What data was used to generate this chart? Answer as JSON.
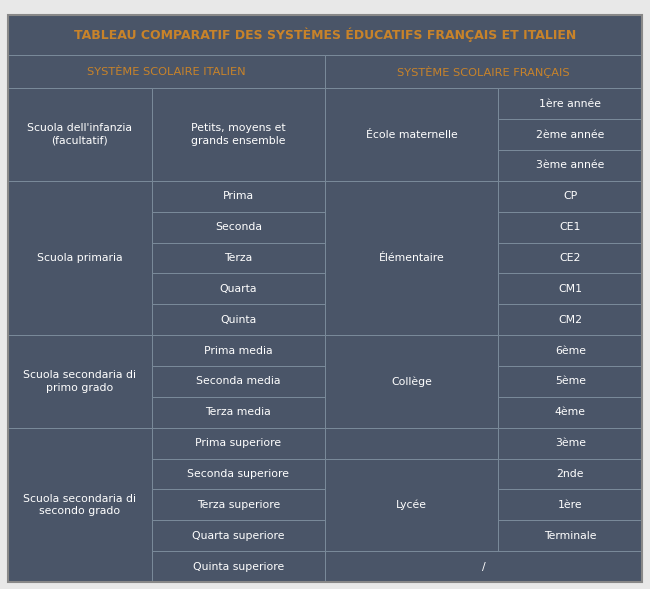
{
  "title": "TABLEAU COMPARATIF DES SYSTÈMES ÉDUCATIFS FRANÇAIS ET ITALIEN",
  "header_italian": "SYSTÈME SCOLAIRE ITALIEN",
  "header_french": "SYSTÈME SCOLAIRE FRANÇAIS",
  "cell_bg": "#4a5568",
  "border_color": "#7a8a9a",
  "text_color": "#ffffff",
  "orange_color": "#c8832a",
  "outer_bg": "#e8e8e8",
  "figsize": [
    6.5,
    5.89
  ],
  "groups": [
    {
      "col1": "Scuola dell'infanzia\n(facultatif)",
      "col2_items": [
        "Petits, moyens et\ngrands ensemble"
      ],
      "col2_merged": true,
      "col3": "École maternelle",
      "col3_merged": true,
      "col4_items": [
        "1ère année",
        "2ème année",
        "3ème année"
      ],
      "nrows": 3
    },
    {
      "col1": "Scuola primaria",
      "col2_items": [
        "Prima",
        "Seconda",
        "Terza",
        "Quarta",
        "Quinta"
      ],
      "col2_merged": false,
      "col3": "Élémentaire",
      "col3_merged": true,
      "col4_items": [
        "CP",
        "CE1",
        "CE2",
        "CM1",
        "CM2"
      ],
      "nrows": 5
    },
    {
      "col1": "Scuola secondaria di\nprimo grado",
      "col2_items": [
        "Prima media",
        "Seconda media",
        "Terza media"
      ],
      "col2_merged": false,
      "col3": "Collège",
      "col3_merged": true,
      "col4_items": [
        "6ème",
        "5ème",
        "4ème"
      ],
      "nrows": 3
    },
    {
      "col1": "Scuola secondaria di\nsecondo grado",
      "col2_items": [
        "Prima superiore",
        "Seconda superiore",
        "Terza superiore",
        "Quarta superiore",
        "Quinta superiore"
      ],
      "col2_merged": false,
      "col3": "Lycée",
      "col3_merged": false,
      "col4_items": [
        "3ème",
        "2nde",
        "1ère",
        "Terminale",
        "/"
      ],
      "nrows": 5
    }
  ],
  "col_props": [
    0.195,
    0.235,
    0.235,
    0.195
  ]
}
